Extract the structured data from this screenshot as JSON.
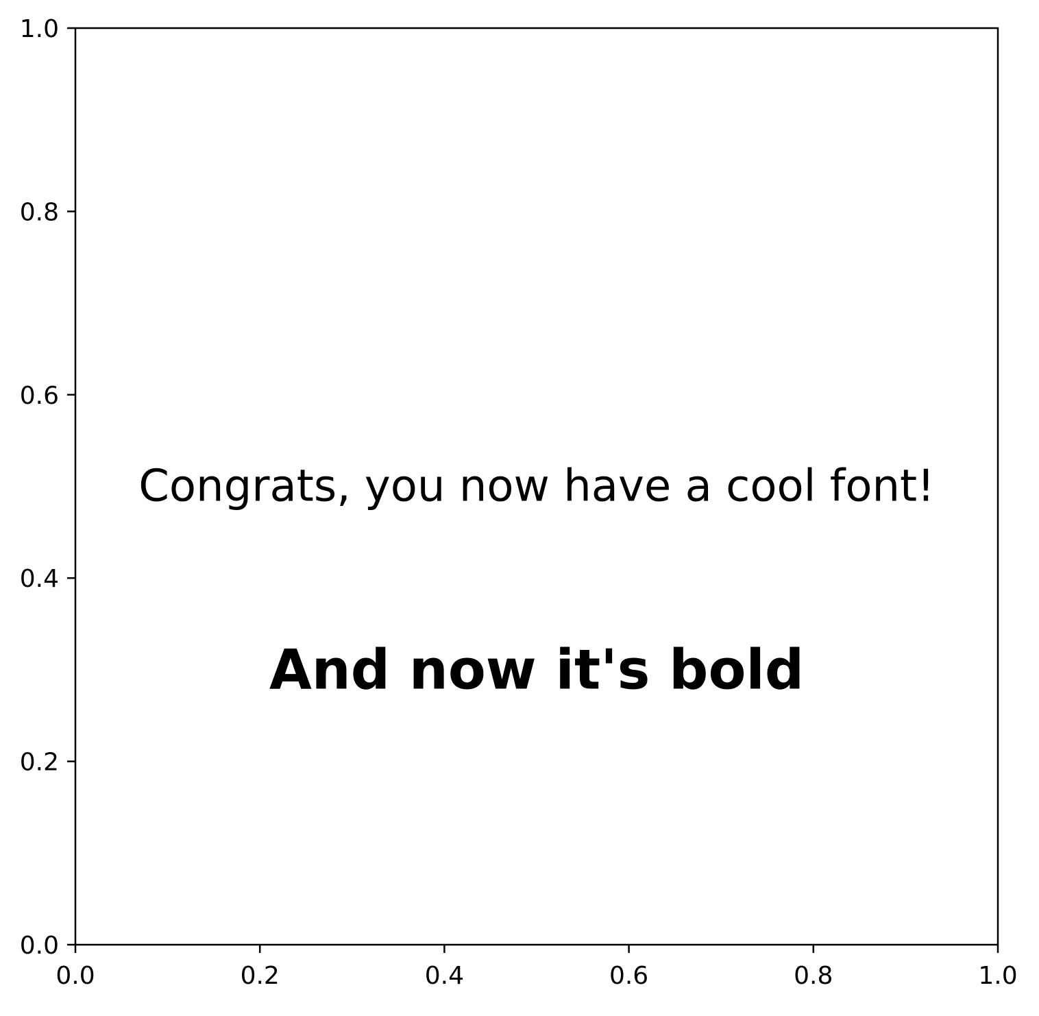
{
  "chart_data": {
    "type": "scatter",
    "title": "",
    "xlabel": "",
    "ylabel": "",
    "xlim": [
      0.0,
      1.0
    ],
    "ylim": [
      0.0,
      1.0
    ],
    "grid": false,
    "xticks": [
      {
        "value": 0.0,
        "label": "0.0"
      },
      {
        "value": 0.2,
        "label": "0.2"
      },
      {
        "value": 0.4,
        "label": "0.4"
      },
      {
        "value": 0.6,
        "label": "0.6"
      },
      {
        "value": 0.8,
        "label": "0.8"
      },
      {
        "value": 1.0,
        "label": "1.0"
      }
    ],
    "yticks": [
      {
        "value": 0.0,
        "label": "0.0"
      },
      {
        "value": 0.2,
        "label": "0.2"
      },
      {
        "value": 0.4,
        "label": "0.4"
      },
      {
        "value": 0.6,
        "label": "0.6"
      },
      {
        "value": 0.8,
        "label": "0.8"
      },
      {
        "value": 1.0,
        "label": "1.0"
      }
    ],
    "series": [],
    "annotations": [
      {
        "text": "Congrats, you now have a cool font!",
        "x": 0.5,
        "y": 0.5,
        "weight": "normal"
      },
      {
        "text": "And now it's bold",
        "x": 0.5,
        "y": 0.3,
        "weight": "bold"
      }
    ]
  },
  "colors": {
    "axis": "#000000",
    "background": "#ffffff",
    "text": "#000000"
  }
}
